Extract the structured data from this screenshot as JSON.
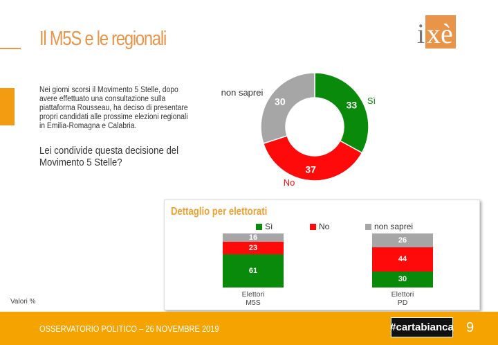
{
  "header": {
    "title": "Il M5S e le regionali",
    "logo_text": "ixè"
  },
  "intro": "Nei giorni scorsi il Movimento 5 Stelle, dopo avere effettuato una consultazione sulla piattaforma Rousseau, ha deciso di presentare propri candidati alle prossime elezioni regionali in Emilia-Romagna e Calabria.",
  "question": "Lei condivide questa decisione del Movimento 5 Stelle?",
  "chart_data": [
    {
      "type": "pie",
      "title": "",
      "categories": [
        "Sì",
        "No",
        "non saprei"
      ],
      "values": [
        33,
        37,
        30
      ],
      "colors": [
        "#0a8a0a",
        "#ff0a0a",
        "#a6a6a6"
      ]
    },
    {
      "type": "bar",
      "stacked": true,
      "title": "Dettaglio per elettorati",
      "categories": [
        "Elettori M5S",
        "Elettori PD"
      ],
      "category_lines": [
        [
          "Elettori",
          "M5S"
        ],
        [
          "Elettori",
          "PD"
        ]
      ],
      "series": [
        {
          "name": "Sì",
          "values": [
            61,
            30
          ],
          "color": "#0a8a0a"
        },
        {
          "name": "No",
          "values": [
            23,
            44
          ],
          "color": "#ff0a0a"
        },
        {
          "name": "non saprei",
          "values": [
            16,
            26
          ],
          "color": "#a6a6a6"
        }
      ]
    }
  ],
  "note": "Valori %",
  "footer": {
    "text": "OSSERVATORIO POLITICO – 26 NOVEMBRE 2019",
    "tag": "#cartabianca",
    "page": "9"
  }
}
